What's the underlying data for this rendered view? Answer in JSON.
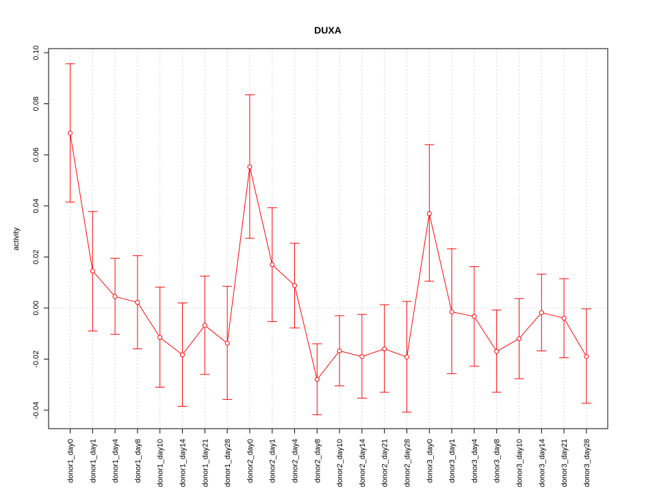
{
  "chart_data": {
    "type": "line",
    "title": "DUXA",
    "xlabel": "",
    "ylabel": "activity",
    "ylim": [
      -0.047,
      0.101
    ],
    "yticks": [
      -0.04,
      -0.02,
      0.0,
      0.02,
      0.04,
      0.06,
      0.08,
      0.1
    ],
    "ytick_labels": [
      "-0.04",
      "-0.02",
      "0.00",
      "0.02",
      "0.04",
      "0.06",
      "0.08",
      "0.10"
    ],
    "grid": true,
    "color": "#ff0000",
    "categories": [
      "donor1_day0",
      "donor1_day1",
      "donor1_day4",
      "donor1_day8",
      "donor1_day10",
      "donor1_day14",
      "donor1_day21",
      "donor1_day28",
      "donor2_day0",
      "donor2_day1",
      "donor2_day4",
      "donor2_day8",
      "donor2_day10",
      "donor2_day14",
      "donor2_day21",
      "donor2_day28",
      "donor3_day0",
      "donor3_day1",
      "donor3_day4",
      "donor3_day8",
      "donor3_day10",
      "donor3_day14",
      "donor3_day21",
      "donor3_day28"
    ],
    "values": [
      0.0685,
      0.0145,
      0.0045,
      0.0022,
      -0.0115,
      -0.0183,
      -0.0068,
      -0.0138,
      0.0553,
      0.017,
      0.0088,
      -0.028,
      -0.0168,
      -0.019,
      -0.016,
      -0.0192,
      0.037,
      -0.0015,
      -0.0033,
      -0.017,
      -0.012,
      -0.0018,
      -0.004,
      -0.019
    ],
    "error_upper": [
      0.0957,
      0.0378,
      0.0195,
      0.0205,
      0.0082,
      0.002,
      0.0125,
      0.0085,
      0.0835,
      0.0393,
      0.0254,
      -0.014,
      -0.003,
      -0.0025,
      0.0013,
      0.0026,
      0.064,
      0.0232,
      0.0162,
      -0.0008,
      0.0037,
      0.0133,
      0.0115,
      -0.0003
    ],
    "error_lower": [
      0.0415,
      -0.009,
      -0.0103,
      -0.016,
      -0.031,
      -0.0385,
      -0.026,
      -0.0358,
      0.0273,
      -0.0053,
      -0.0078,
      -0.0418,
      -0.0305,
      -0.0353,
      -0.033,
      -0.0408,
      0.0105,
      -0.0257,
      -0.0228,
      -0.033,
      -0.0277,
      -0.0168,
      -0.0195,
      -0.0373
    ]
  }
}
